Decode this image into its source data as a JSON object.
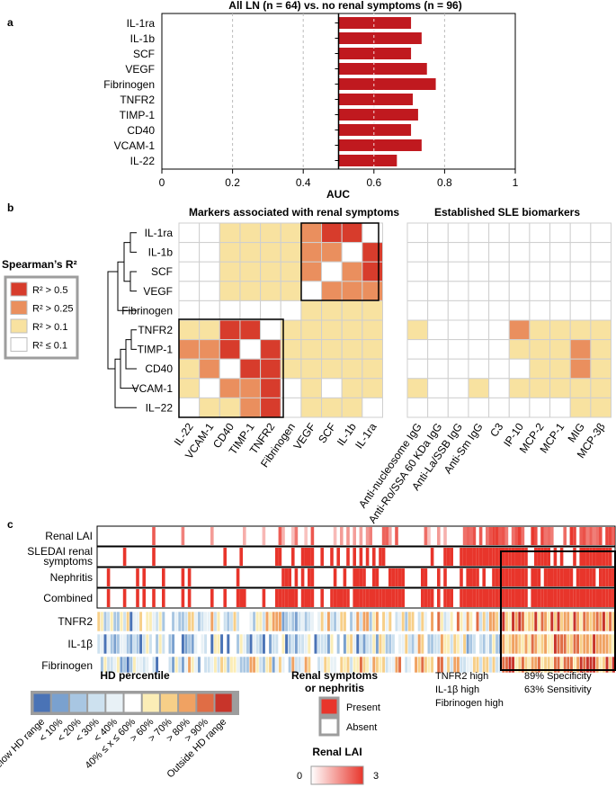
{
  "panel_labels": {
    "a": "a",
    "b": "b",
    "c": "c"
  },
  "colors": {
    "bar": "#c0191f",
    "strong": "#d73c2c",
    "medium": "#ea8f5e",
    "weak": "#f8e2a0",
    "none": "#ffffff",
    "present": "#e8352b",
    "cell_border": "#cfcfcf",
    "legend_border": "#9d9d9d",
    "hd_scale": [
      "#4a73b6",
      "#7aa1cf",
      "#a8c6e2",
      "#cde1ef",
      "#e8f1f6",
      "#ffffff",
      "#fbedb6",
      "#f7cf88",
      "#f0a262",
      "#e06d45",
      "#c8342a"
    ]
  },
  "chart_data": [
    {
      "type": "bar",
      "orientation": "horizontal",
      "title": "All LN (n = 64) vs. no renal symptoms (n = 96)",
      "xlabel": "AUC",
      "categories": [
        "IL-1ra",
        "IL-1b",
        "SCF",
        "VEGF",
        "Fibrinogen",
        "TNFR2",
        "TIMP-1",
        "CD40",
        "VCAM-1",
        "IL-22"
      ],
      "values": [
        0.705,
        0.735,
        0.705,
        0.75,
        0.775,
        0.71,
        0.725,
        0.705,
        0.735,
        0.665
      ],
      "xlim": [
        0,
        1
      ],
      "xticks": [
        0,
        0.2,
        0.4,
        0.6,
        0.8,
        1
      ],
      "xtick_labels": [
        "0",
        "0.2",
        "0.4",
        "0.6",
        "0.8",
        "1"
      ],
      "reference_line": 0.5,
      "grid": "vertical dashed"
    },
    {
      "type": "heatmap",
      "title_left": "Markers associated with renal symptoms",
      "title_right": "Established SLE biomarkers",
      "legend_title": "Spearman’s R²",
      "legend_items": [
        "R² > 0.5",
        "R² > 0.25",
        "R² > 0.1",
        "R² ≤ 0.1"
      ],
      "rows": [
        "IL-1ra",
        "IL-1b",
        "SCF",
        "VEGF",
        "Fibrinogen",
        "TNFR2",
        "TIMP-1",
        "CD40",
        "VCAM-1",
        "IL−22"
      ],
      "cols_left": [
        "IL-22",
        "VCAM-1",
        "CD40",
        "TIMP-1",
        "TNFR2",
        "Fibrinogen",
        "VEGF",
        "SCF",
        "IL-1b",
        "IL-1ra"
      ],
      "cols_right": [
        "Anti-nucleosome IgG",
        "Anti-Ro/SSA 60 KDa IgG",
        "Anti-La/SSB IgG",
        "Anti-Sm IgG",
        "C3",
        "IP-10",
        "MCP-2",
        "MCP-1",
        "MIG",
        "MCP-3β"
      ],
      "level_scale": "0 = R² ≤ 0.1, 1 = R² > 0.1, 2 = R² > 0.25, 3 = R² > 0.5",
      "values_left": [
        [
          0,
          0,
          1,
          1,
          1,
          1,
          2,
          3,
          3,
          0
        ],
        [
          0,
          0,
          1,
          1,
          1,
          1,
          2,
          2,
          0,
          3
        ],
        [
          0,
          0,
          1,
          1,
          1,
          1,
          2,
          0,
          2,
          3
        ],
        [
          0,
          0,
          1,
          1,
          1,
          1,
          0,
          2,
          2,
          2
        ],
        [
          0,
          0,
          0,
          0,
          0,
          0,
          1,
          1,
          1,
          1
        ],
        [
          1,
          1,
          3,
          3,
          0,
          1,
          1,
          1,
          1,
          1
        ],
        [
          2,
          2,
          3,
          0,
          3,
          1,
          1,
          1,
          1,
          1
        ],
        [
          1,
          2,
          0,
          3,
          3,
          1,
          1,
          1,
          1,
          1
        ],
        [
          1,
          0,
          2,
          2,
          3,
          0,
          1,
          0,
          1,
          1
        ],
        [
          0,
          1,
          1,
          2,
          3,
          0,
          1,
          1,
          1,
          0
        ]
      ],
      "values_right": [
        [
          0,
          0,
          0,
          0,
          0,
          0,
          0,
          0,
          0,
          0
        ],
        [
          0,
          0,
          0,
          0,
          0,
          0,
          0,
          0,
          0,
          0
        ],
        [
          0,
          0,
          0,
          0,
          0,
          0,
          0,
          0,
          0,
          0
        ],
        [
          0,
          0,
          0,
          0,
          0,
          0,
          0,
          0,
          0,
          0
        ],
        [
          0,
          0,
          0,
          0,
          0,
          0,
          0,
          0,
          0,
          0
        ],
        [
          1,
          0,
          0,
          0,
          0,
          2,
          1,
          1,
          1,
          1
        ],
        [
          0,
          0,
          0,
          0,
          0,
          1,
          1,
          1,
          2,
          1
        ],
        [
          0,
          0,
          0,
          0,
          0,
          0,
          1,
          1,
          2,
          1
        ],
        [
          1,
          0,
          0,
          1,
          0,
          1,
          1,
          1,
          1,
          1
        ],
        [
          0,
          0,
          0,
          0,
          0,
          0,
          0,
          0,
          1,
          1
        ]
      ],
      "highlight_boxes": [
        "IL-1ra, IL-1b, SCF, VEGF block",
        "TNFR2, TIMP-1, CD40, VCAM-1, IL-22 block"
      ],
      "dendrogram": "hierarchical clustering of the 10 markers"
    },
    {
      "type": "heatmap",
      "subtype": "patient strip plot",
      "rows": [
        "Renal LAI",
        "SLEDAI renal symptoms",
        "Nephritis",
        "Combined",
        "TNFR2",
        "IL-1β",
        "Fibrinogen"
      ],
      "n_patients": 160,
      "box_annotation": {
        "lines_left": [
          "TNFR2 high",
          "IL-1β high",
          "Fibrinogen high"
        ],
        "lines_right": [
          "89% Specificity",
          "63% Sensitivity"
        ]
      },
      "hd_legend": {
        "title": "HD percentile",
        "labels": [
          "Below HD range",
          "< 10%",
          "< 20%",
          "< 30%",
          "< 40%",
          "40% ≤ x ≤ 60%",
          "> 60%",
          "> 70%",
          "> 80%",
          "> 90%",
          "Outside HD range"
        ]
      },
      "symptom_legend": {
        "title_line1": "Renal symptoms",
        "title_line2": "or nephritis",
        "present": "Present",
        "absent": "Absent"
      },
      "lai_legend": {
        "title": "Renal LAI",
        "min": "0",
        "max": "3"
      }
    }
  ]
}
